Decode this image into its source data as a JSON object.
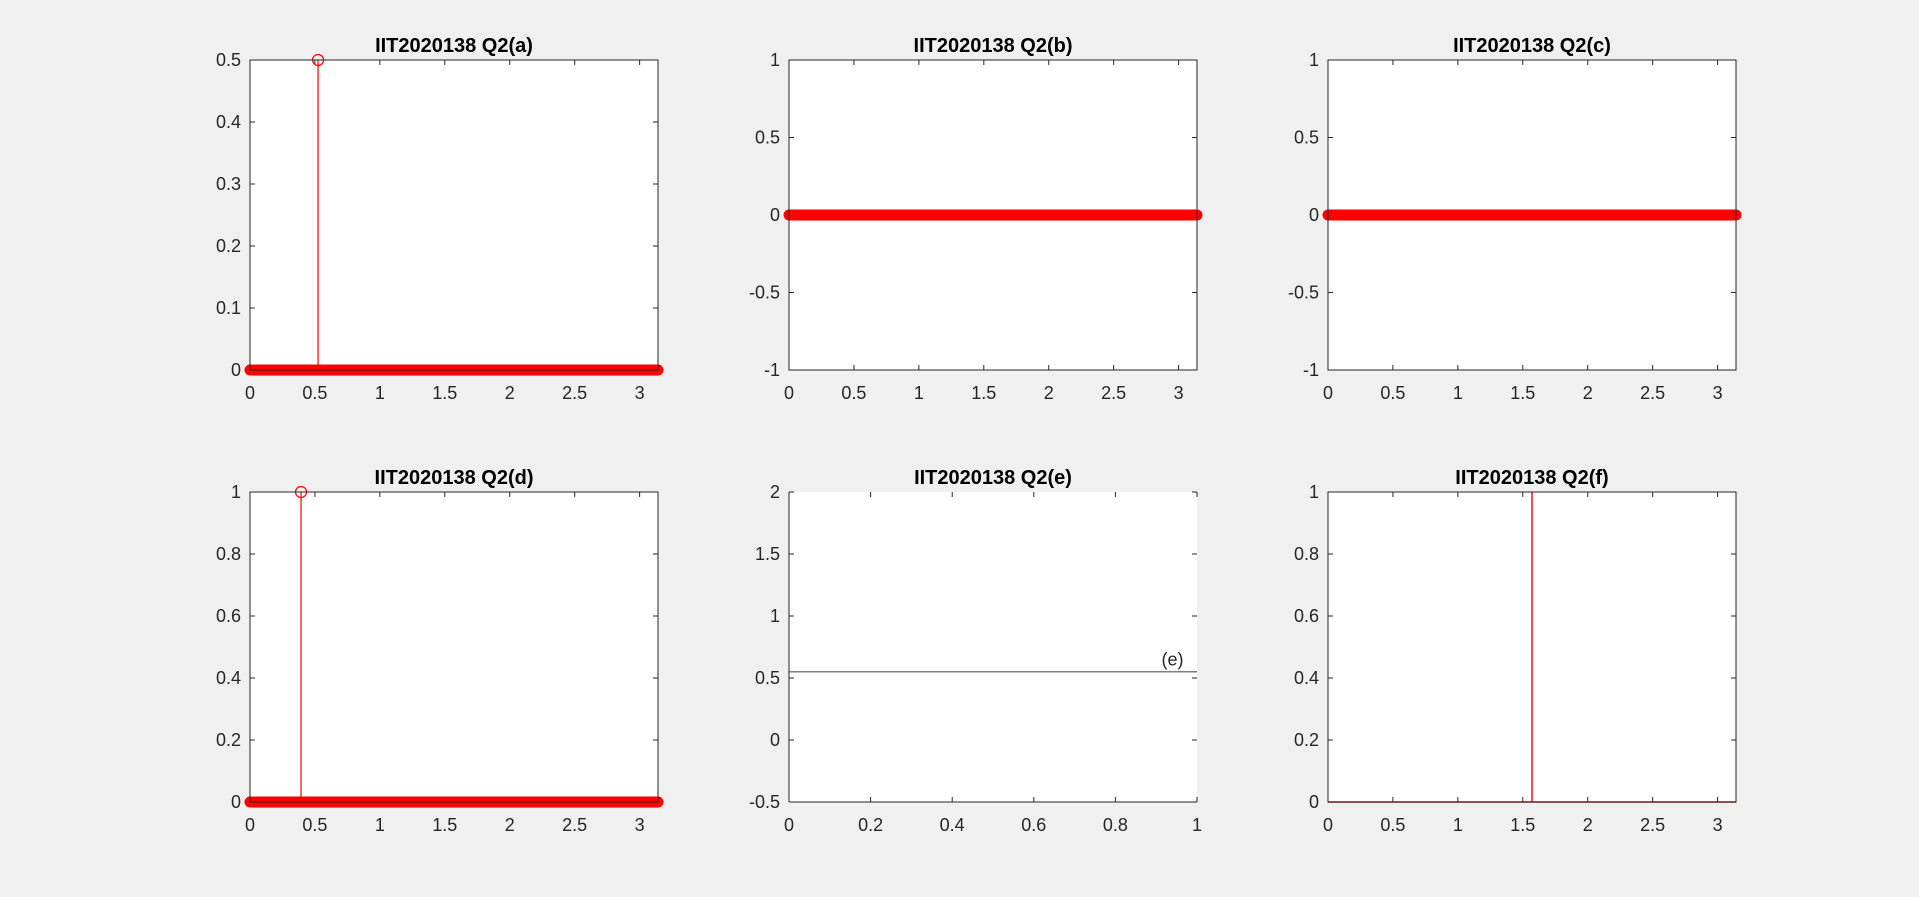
{
  "figure": {
    "background": "#f0f0f0",
    "mark_color": "#ff0000",
    "axis_color": "#262626"
  },
  "chart_data": [
    {
      "id": "a",
      "type": "stem",
      "title": "IIT2020138 Q2(a)",
      "xlim": [
        0,
        3.1416
      ],
      "ylim": [
        0,
        0.5
      ],
      "xticks": [
        0,
        0.5,
        1,
        1.5,
        2,
        2.5,
        3
      ],
      "yticks": [
        0,
        0.1,
        0.2,
        0.3,
        0.4,
        0.5
      ],
      "xtick_labels": [
        "0",
        "0.5",
        "1",
        "1.5",
        "2",
        "2.5",
        "3"
      ],
      "ytick_labels": [
        "0",
        "0.1",
        "0.2",
        "0.3",
        "0.4",
        "0.5"
      ],
      "baseline_markers": {
        "x_start": 0,
        "x_end": 3.1416,
        "y": 0
      },
      "peaks": [
        {
          "x": 0.524,
          "y": 0.5
        }
      ]
    },
    {
      "id": "b",
      "type": "stem",
      "title": "IIT2020138 Q2(b)",
      "xlim": [
        0,
        3.1416
      ],
      "ylim": [
        -1,
        1
      ],
      "xticks": [
        0,
        0.5,
        1,
        1.5,
        2,
        2.5,
        3
      ],
      "yticks": [
        -1,
        -0.5,
        0,
        0.5,
        1
      ],
      "xtick_labels": [
        "0",
        "0.5",
        "1",
        "1.5",
        "2",
        "2.5",
        "3"
      ],
      "ytick_labels": [
        "-1",
        "-0.5",
        "0",
        "0.5",
        "1"
      ],
      "baseline_markers": {
        "x_start": 0,
        "x_end": 3.1416,
        "y": 0
      },
      "peaks": []
    },
    {
      "id": "c",
      "type": "stem",
      "title": "IIT2020138 Q2(c)",
      "xlim": [
        0,
        3.1416
      ],
      "ylim": [
        -1,
        1
      ],
      "xticks": [
        0,
        0.5,
        1,
        1.5,
        2,
        2.5,
        3
      ],
      "yticks": [
        -1,
        -0.5,
        0,
        0.5,
        1
      ],
      "xtick_labels": [
        "0",
        "0.5",
        "1",
        "1.5",
        "2",
        "2.5",
        "3"
      ],
      "ytick_labels": [
        "-1",
        "-0.5",
        "0",
        "0.5",
        "1"
      ],
      "baseline_markers": {
        "x_start": 0,
        "x_end": 3.1416,
        "y": 0
      },
      "peaks": []
    },
    {
      "id": "d",
      "type": "stem",
      "title": "IIT2020138 Q2(d)",
      "xlim": [
        0,
        3.1416
      ],
      "ylim": [
        0,
        1
      ],
      "xticks": [
        0,
        0.5,
        1,
        1.5,
        2,
        2.5,
        3
      ],
      "yticks": [
        0,
        0.2,
        0.4,
        0.6,
        0.8,
        1
      ],
      "xtick_labels": [
        "0",
        "0.5",
        "1",
        "1.5",
        "2",
        "2.5",
        "3"
      ],
      "ytick_labels": [
        "0",
        "0.2",
        "0.4",
        "0.6",
        "0.8",
        "1"
      ],
      "baseline_markers": {
        "x_start": 0,
        "x_end": 3.1416,
        "y": 0
      },
      "peaks": [
        {
          "x": 0.393,
          "y": 1
        }
      ]
    },
    {
      "id": "e",
      "type": "line",
      "title": "IIT2020138 Q2(e)",
      "xlim": [
        0,
        1
      ],
      "ylim": [
        -0.5,
        2
      ],
      "xticks": [
        0,
        0.2,
        0.4,
        0.6,
        0.8,
        1
      ],
      "yticks": [
        -0.5,
        0,
        0.5,
        1,
        1.5,
        2
      ],
      "xtick_labels": [
        "0",
        "0.2",
        "0.4",
        "0.6",
        "0.8",
        "1"
      ],
      "ytick_labels": [
        "-0.5",
        "0",
        "0.5",
        "1",
        "1.5",
        "2"
      ],
      "hline_y": 0.55,
      "annotation": {
        "text": "(e)",
        "x": 0.94,
        "y": 0.6
      }
    },
    {
      "id": "f",
      "type": "line",
      "title": "IIT2020138 Q2(f)",
      "xlim": [
        0,
        3.1416
      ],
      "ylim": [
        0,
        1
      ],
      "xticks": [
        0,
        0.5,
        1,
        1.5,
        2,
        2.5,
        3
      ],
      "yticks": [
        0,
        0.2,
        0.4,
        0.6,
        0.8,
        1
      ],
      "xtick_labels": [
        "0",
        "0.5",
        "1",
        "1.5",
        "2",
        "2.5",
        "3"
      ],
      "ytick_labels": [
        "0",
        "0.2",
        "0.4",
        "0.6",
        "0.8",
        "1"
      ],
      "points": [
        {
          "x": 0,
          "y": 0
        },
        {
          "x": 1.5708,
          "y": 0
        },
        {
          "x": 1.5708,
          "y": 1
        },
        {
          "x": 1.5708,
          "y": 0
        },
        {
          "x": 3.1416,
          "y": 0
        }
      ]
    }
  ]
}
